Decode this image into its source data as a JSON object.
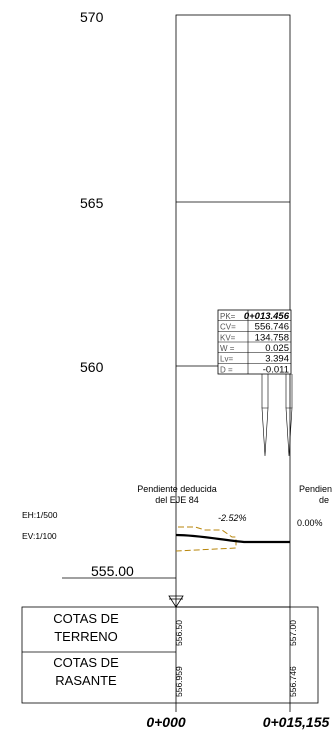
{
  "elevation_labels": [
    "570",
    "565",
    "560"
  ],
  "datum_label": "555.00",
  "scale": {
    "horizontal": "EH:1/500",
    "vertical": "EV:1/100"
  },
  "slope_note_left": {
    "line1": "Pendiente deducida",
    "line2": "del EJE 84"
  },
  "slope_note_right": {
    "line1": "Pendien",
    "line2": "de"
  },
  "slopes": {
    "left": "-2.52%",
    "right": "0.00%"
  },
  "pk_box": {
    "rows": [
      {
        "key": "PK=",
        "value": "0+013.456"
      },
      {
        "key": "CV=",
        "value": "556.746"
      },
      {
        "key": "KV=",
        "value": "134.758"
      },
      {
        "key": "W =",
        "value": "0.025"
      },
      {
        "key": "Lv=",
        "value": "3.394"
      },
      {
        "key": "D =",
        "value": "-0.011"
      }
    ]
  },
  "guitar": {
    "row1_label": {
      "line1": "COTAS DE",
      "line2": "TERRENO"
    },
    "row2_label": {
      "line1": "COTAS DE",
      "line2": "RASANTE"
    },
    "terreno": [
      "556.50",
      "557.00"
    ],
    "rasante": [
      "556.959",
      "556.746"
    ]
  },
  "chainages": [
    "0+000",
    "0+015,155"
  ],
  "colors": {
    "line": "#000000",
    "ground_dashed": "#b8860b"
  }
}
